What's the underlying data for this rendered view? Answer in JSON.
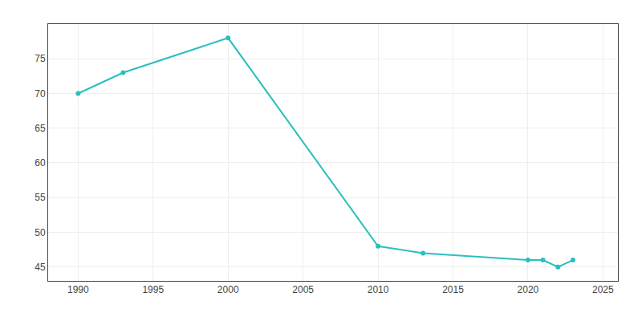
{
  "chart_data": {
    "type": "line",
    "x": [
      1990,
      1993,
      2000,
      2010,
      2013,
      2020,
      2021,
      2022,
      2023
    ],
    "values": [
      70,
      73,
      78,
      48,
      47,
      46,
      46,
      45,
      46
    ],
    "color": "#2abfbf",
    "marker": "circle",
    "xlim": [
      1988,
      2026
    ],
    "ylim": [
      43,
      80
    ],
    "xticks": [
      1990,
      1995,
      2000,
      2005,
      2010,
      2015,
      2020,
      2025
    ],
    "yticks": [
      45,
      50,
      55,
      60,
      65,
      70,
      75
    ],
    "grid": true
  }
}
